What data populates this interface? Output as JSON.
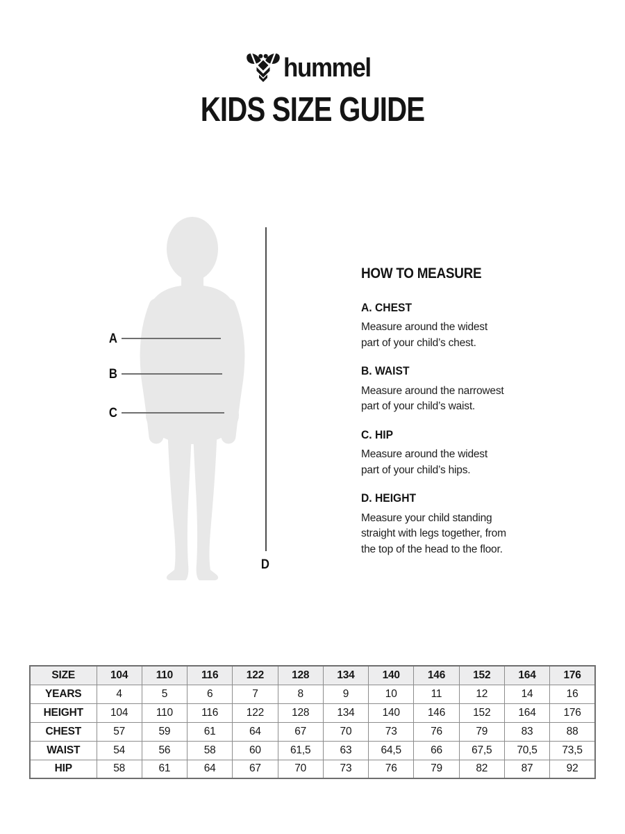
{
  "brand": {
    "name": "hummel",
    "icon": "hummel-bee-icon"
  },
  "page": {
    "title": "KIDS SIZE GUIDE"
  },
  "figure": {
    "measure_labels": {
      "a": "A",
      "b": "B",
      "c": "C",
      "d": "D"
    }
  },
  "how_to_measure": {
    "heading": "HOW TO MEASURE",
    "sections": [
      {
        "title": "A. CHEST",
        "lines": [
          "Measure around the widest",
          "part of your child’s chest."
        ]
      },
      {
        "title": "B. WAIST",
        "lines": [
          "Measure around the narrowest",
          "part of your child’s waist."
        ]
      },
      {
        "title": "C. HIP",
        "lines": [
          "Measure around the widest",
          "part of your child’s hips."
        ]
      },
      {
        "title": "D. HEIGHT",
        "lines": [
          "Measure your child standing",
          "straight with legs together, from",
          "the top of the head to the floor."
        ]
      }
    ]
  },
  "size_table": {
    "rows": [
      {
        "label": "SIZE",
        "header": true,
        "values": [
          "104",
          "110",
          "116",
          "122",
          "128",
          "134",
          "140",
          "146",
          "152",
          "164",
          "176"
        ]
      },
      {
        "label": "YEARS",
        "values": [
          "4",
          "5",
          "6",
          "7",
          "8",
          "9",
          "10",
          "11",
          "12",
          "14",
          "16"
        ]
      },
      {
        "label": "HEIGHT",
        "values": [
          "104",
          "110",
          "116",
          "122",
          "128",
          "134",
          "140",
          "146",
          "152",
          "164",
          "176"
        ]
      },
      {
        "label": "CHEST",
        "values": [
          "57",
          "59",
          "61",
          "64",
          "67",
          "70",
          "73",
          "76",
          "79",
          "83",
          "88"
        ]
      },
      {
        "label": "WAIST",
        "values": [
          "54",
          "56",
          "58",
          "60",
          "61,5",
          "63",
          "64,5",
          "66",
          "67,5",
          "70,5",
          "73,5"
        ]
      },
      {
        "label": "HIP",
        "values": [
          "58",
          "61",
          "64",
          "67",
          "70",
          "73",
          "76",
          "79",
          "82",
          "87",
          "92"
        ]
      }
    ]
  },
  "colors": {
    "text": "#1a1a1a",
    "silhouette": "#e8e8e8",
    "measure_line": "#6f6f6f",
    "table_border": "#8c8c8c",
    "table_header_bg": "#ededee"
  }
}
